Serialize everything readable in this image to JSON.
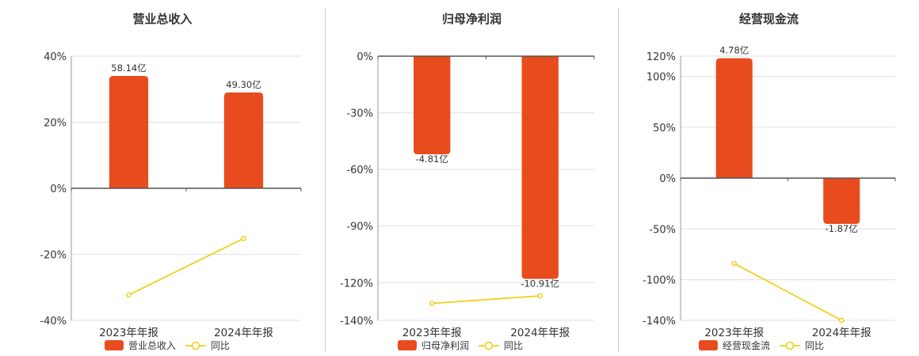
{
  "colors": {
    "bar": "#e84c1e",
    "line": "#f2cf1d",
    "grid": "#e0e0e0",
    "axis": "#555555"
  },
  "legend": {
    "line_label": "同比"
  },
  "chart_data": [
    {
      "type": "bar",
      "title": "营业总收入",
      "categories": [
        "2023年年报",
        "2024年年报"
      ],
      "ylim": [
        -40,
        40
      ],
      "yticks": [
        40,
        20,
        0,
        -20,
        -40
      ],
      "series": [
        {
          "name": "营业总收入",
          "type": "bar",
          "values": [
            34,
            29
          ],
          "labels": [
            "58.14亿",
            "49.30亿"
          ]
        },
        {
          "name": "同比",
          "type": "line",
          "values": [
            -32.3,
            -15.2
          ]
        }
      ]
    },
    {
      "type": "bar",
      "title": "归母净利润",
      "categories": [
        "2023年年报",
        "2024年年报"
      ],
      "ylim": [
        -140,
        0
      ],
      "yticks": [
        0,
        -30,
        -60,
        -90,
        -120,
        -140
      ],
      "series": [
        {
          "name": "归母净利润",
          "type": "bar",
          "values": [
            -52,
            -118
          ],
          "labels": [
            "-4.81亿",
            "-10.91亿"
          ]
        },
        {
          "name": "同比",
          "type": "line",
          "values": [
            -131,
            -127
          ]
        }
      ]
    },
    {
      "type": "bar",
      "title": "经营现金流",
      "categories": [
        "2023年年报",
        "2024年年报"
      ],
      "ylim": [
        -140,
        120
      ],
      "yticks": [
        120,
        100,
        50,
        0,
        -50,
        -100,
        -140
      ],
      "series": [
        {
          "name": "经营现金流",
          "type": "bar",
          "values": [
            118,
            -45
          ],
          "labels": [
            "4.78亿",
            "-1.87亿"
          ]
        },
        {
          "name": "同比",
          "type": "line",
          "values": [
            -84,
            -140
          ]
        }
      ]
    }
  ]
}
